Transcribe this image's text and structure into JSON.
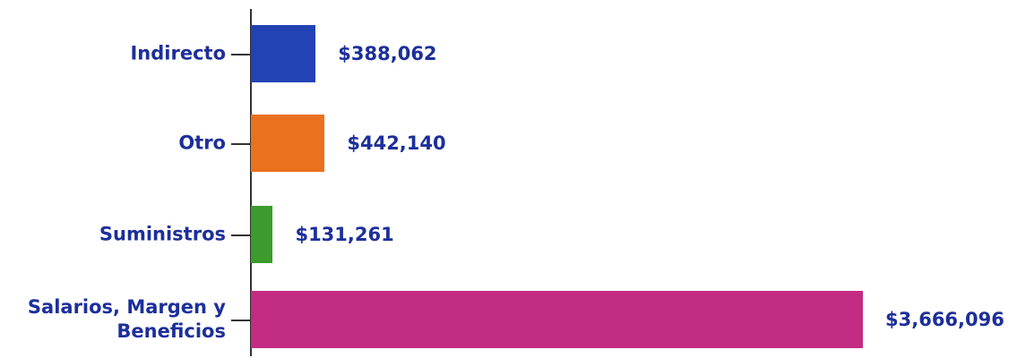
{
  "chart_data": {
    "type": "bar",
    "orientation": "horizontal",
    "categories": [
      "Indirecto",
      "Otro",
      "Suministros",
      "Salarios, Margen y Beneficios"
    ],
    "values": [
      388062,
      442140,
      131261,
      3666096
    ],
    "value_labels": [
      "$388,062",
      "$442,140",
      "$131,261",
      "$3,666,096"
    ],
    "colors": [
      "#2243b4",
      "#ea711e",
      "#3c9b2c",
      "#c22c82"
    ]
  }
}
